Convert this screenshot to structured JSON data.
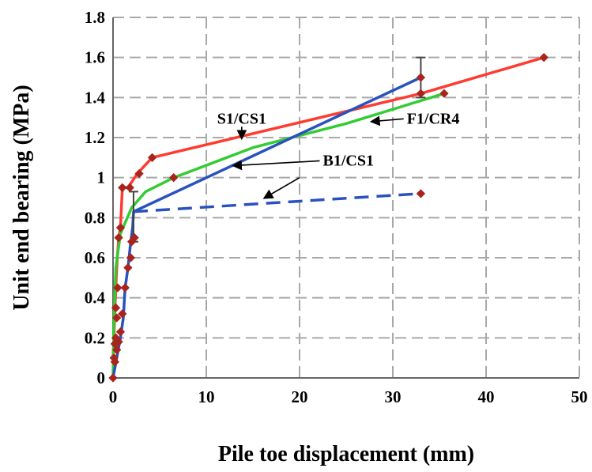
{
  "chart_data": {
    "type": "line",
    "xlabel": "Pile toe displacement (mm)",
    "ylabel": "Unit end bearing (MPa)",
    "xlim": [
      0,
      50
    ],
    "ylim": [
      0,
      1.8
    ],
    "x_ticks": [
      "0",
      "10",
      "20",
      "30",
      "40",
      "50"
    ],
    "y_ticks": [
      "0",
      "0.2",
      "0.4",
      "0.6",
      "0.8",
      "1",
      "1.2",
      "1.4",
      "1.6",
      "1.8"
    ],
    "grid": true,
    "grid_style": "dashed",
    "series": [
      {
        "name": "S1/CS1",
        "color": "#ff3b30",
        "style": "solid",
        "points": [
          [
            0,
            0.1
          ],
          [
            0.1,
            0.2
          ],
          [
            0.2,
            0.35
          ],
          [
            0.4,
            0.55
          ],
          [
            0.6,
            0.7
          ],
          [
            0.8,
            0.75
          ],
          [
            1.0,
            0.95
          ],
          [
            1.6,
            0.95
          ],
          [
            2.6,
            1.02
          ],
          [
            4.2,
            1.1
          ],
          [
            33.0,
            1.42
          ],
          [
            46.2,
            1.6
          ]
        ]
      },
      {
        "name": "F1/CR4",
        "color": "#33cc33",
        "style": "solid",
        "points": [
          [
            0,
            0
          ],
          [
            0.1,
            0.3
          ],
          [
            0.3,
            0.55
          ],
          [
            0.8,
            0.72
          ],
          [
            2.0,
            0.85
          ],
          [
            3.5,
            0.93
          ],
          [
            6.5,
            1.0
          ],
          [
            15.0,
            1.15
          ],
          [
            25.0,
            1.27
          ],
          [
            35.5,
            1.42
          ]
        ]
      },
      {
        "name": "B1/CS1",
        "color": "#2a52be",
        "style": "solid",
        "points": [
          [
            0,
            0
          ],
          [
            0.4,
            0.1
          ],
          [
            0.8,
            0.2
          ],
          [
            1.1,
            0.3
          ],
          [
            1.3,
            0.45
          ],
          [
            1.6,
            0.55
          ],
          [
            1.9,
            0.68
          ],
          [
            2.1,
            0.75
          ],
          [
            2.2,
            0.83
          ],
          [
            33.0,
            1.5
          ]
        ]
      },
      {
        "name": "",
        "color": "#2a52be",
        "style": "dashed",
        "points": [
          [
            2.2,
            0.83
          ],
          [
            33.0,
            0.92
          ]
        ]
      }
    ],
    "markers": [
      [
        0.0,
        0.0
      ],
      [
        0.2,
        0.08
      ],
      [
        0.1,
        0.1
      ],
      [
        0.4,
        0.14
      ],
      [
        0.2,
        0.17
      ],
      [
        0.6,
        0.18
      ],
      [
        0.3,
        0.2
      ],
      [
        0.8,
        0.23
      ],
      [
        0.4,
        0.3
      ],
      [
        1.0,
        0.32
      ],
      [
        0.3,
        0.35
      ],
      [
        0.5,
        0.45
      ],
      [
        1.3,
        0.45
      ],
      [
        1.6,
        0.55
      ],
      [
        1.9,
        0.6
      ],
      [
        2.0,
        0.68
      ],
      [
        2.3,
        0.7
      ],
      [
        0.6,
        0.7
      ],
      [
        0.8,
        0.75
      ],
      [
        1.0,
        0.95
      ],
      [
        1.8,
        0.95
      ],
      [
        2.8,
        1.02
      ],
      [
        4.2,
        1.1
      ],
      [
        6.5,
        1.0
      ],
      [
        33.0,
        1.5
      ],
      [
        33.0,
        1.42
      ],
      [
        35.5,
        1.42
      ],
      [
        46.2,
        1.6
      ],
      [
        33.0,
        0.92
      ]
    ],
    "error_bars": [
      {
        "x": 33.0,
        "y_low": 1.4,
        "y_high": 1.6
      },
      {
        "x": 2.2,
        "y_low": 0.68,
        "y_high": 0.93
      }
    ],
    "annotations": [
      {
        "text": "S1/CS1",
        "label_at": [
          13.8,
          1.27
        ],
        "arrow_to": [
          13.8,
          1.2
        ]
      },
      {
        "text": "F1/CR4",
        "label_at": [
          31.5,
          1.27
        ],
        "arrow_to": [
          27.8,
          1.28
        ]
      },
      {
        "text": "B1/CS1",
        "label_at": [
          22.5,
          1.06
        ],
        "arrow_to": [
          13.0,
          1.06
        ]
      },
      {
        "text": "",
        "label_at": [
          20.0,
          1.0
        ],
        "arrow_to": [
          16.3,
          0.9
        ]
      }
    ]
  }
}
